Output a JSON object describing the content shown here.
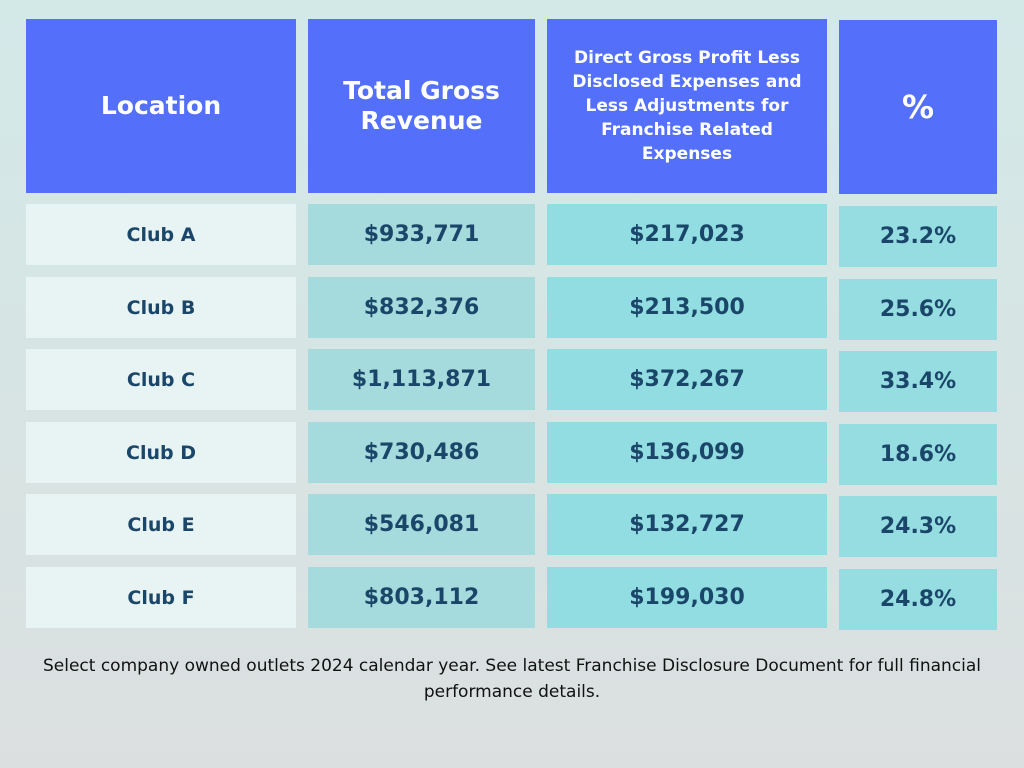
{
  "table": {
    "headers": {
      "location": "Location",
      "revenue": "Total Gross Revenue",
      "profit": "Direct Gross Profit Less Disclosed Expenses and Less Adjustments for Franchise Related Expenses",
      "percent": "%"
    },
    "rows": [
      {
        "location": "Club A",
        "revenue": "$933,771",
        "profit": "$217,023",
        "percent": "23.2%"
      },
      {
        "location": "Club B",
        "revenue": "$832,376",
        "profit": "$213,500",
        "percent": "25.6%"
      },
      {
        "location": "Club C",
        "revenue": "$1,113,871",
        "profit": "$372,267",
        "percent": "33.4%"
      },
      {
        "location": "Club D",
        "revenue": "$730,486",
        "profit": "$136,099",
        "percent": "18.6%"
      },
      {
        "location": "Club E",
        "revenue": "$546,081",
        "profit": "$132,727",
        "percent": "24.3%"
      },
      {
        "location": "Club F",
        "revenue": "$803,112",
        "profit": "$199,030",
        "percent": "24.8%"
      }
    ]
  },
  "footnote": "Select company owned outlets 2024 calendar year. See latest Franchise Disclosure Document for full financial performance details.",
  "colors": {
    "header_bg": "#5470fb",
    "text_dark": "#1a4669",
    "location_bg": "#e8f3f3",
    "revenue_bg": "#a6dbdd",
    "profit_bg": "#92dde1"
  }
}
